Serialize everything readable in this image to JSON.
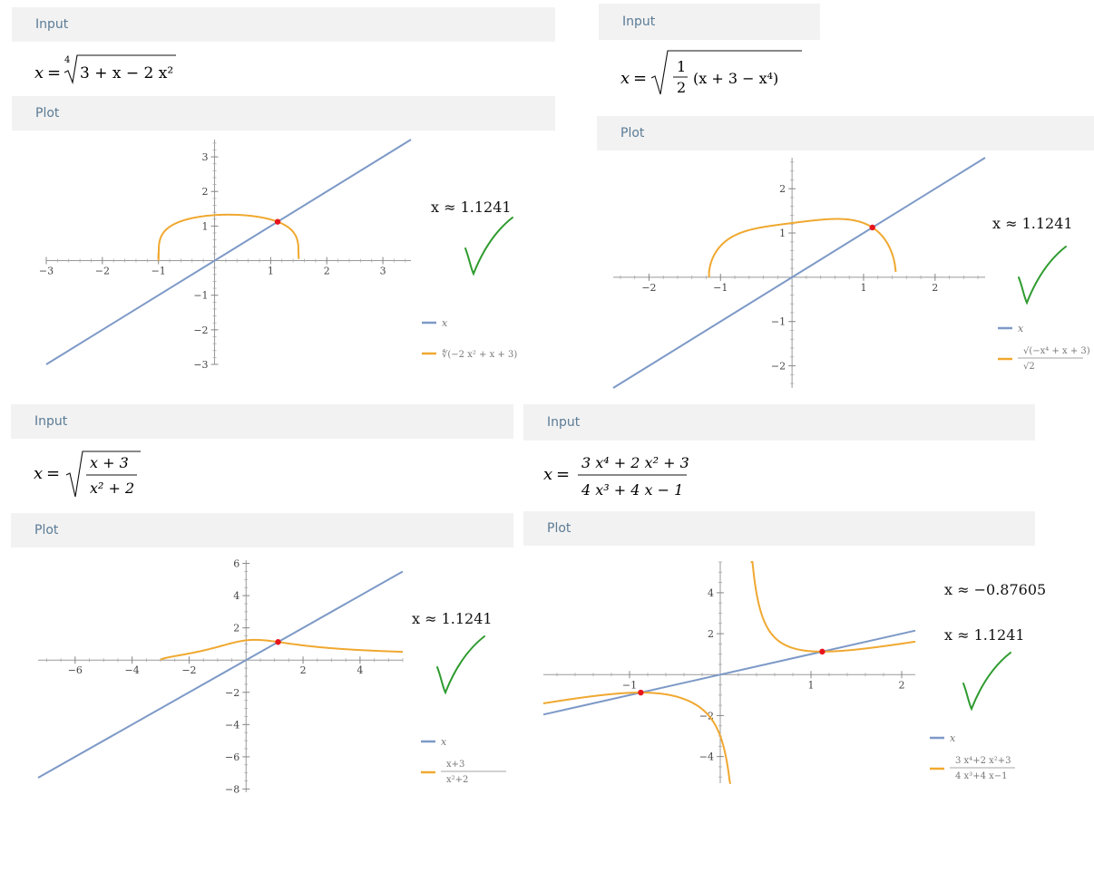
{
  "colors": {
    "line_x": "#7d99c7",
    "curve": "#f0a830",
    "point": "#e8141c",
    "check": "#2e9b2e",
    "header_bg": "#f2f2f2",
    "header_text": "#5b7b95"
  },
  "panels": [
    {
      "input_label": "Input",
      "plot_label": "Plot",
      "formula": {
        "lhs": "x",
        "eq": "=",
        "root_index": "4",
        "radicand": "3 + x − 2 x²"
      },
      "solutions": [
        "x ≈ 1.1241"
      ],
      "legend": {
        "line": "x",
        "curve": "∜(−2 x² + x + 3)"
      },
      "chart_data": {
        "type": "line",
        "xlim": [
          -3,
          3.5
        ],
        "ylim": [
          -3,
          3.5
        ],
        "x_ticks": [
          "−3",
          "−2",
          "−1",
          "1",
          "2",
          "3"
        ],
        "y_ticks": [
          "−3",
          "−2",
          "−1",
          "1",
          "2",
          "3"
        ],
        "series": [
          {
            "name": "x",
            "function": "y = x"
          },
          {
            "name": "∜(−2 x² + x + 3)",
            "function": "y = (3 + x − 2x²)^(1/4)",
            "domain": [
              -1,
              1.5
            ]
          }
        ],
        "intersections": [
          [
            1.1241,
            1.1241
          ]
        ]
      }
    },
    {
      "input_label": "Input",
      "plot_label": "Plot",
      "formula": {
        "lhs": "x",
        "eq": "=",
        "numer": "1",
        "denom": "2",
        "paren": "(x + 3 − x⁴)"
      },
      "solutions": [
        "x ≈ 1.1241"
      ],
      "legend": {
        "line": "x",
        "curve_numer": "√(−x⁴ + x + 3)",
        "curve_denom": "√2"
      },
      "chart_data": {
        "type": "line",
        "xlim": [
          -2.5,
          2.7
        ],
        "ylim": [
          -2.5,
          2.7
        ],
        "x_ticks": [
          "−2",
          "−1",
          "1",
          "2"
        ],
        "y_ticks": [
          "−2",
          "−1",
          "1",
          "2"
        ],
        "series": [
          {
            "name": "x",
            "function": "y = x"
          },
          {
            "name": "√(−x⁴+x+3)/√2",
            "function": "y = sqrt((x + 3 − x^4)/2)",
            "domain": [
              -1.16,
              1.45
            ]
          }
        ],
        "intersections": [
          [
            1.1241,
            1.1241
          ]
        ]
      }
    },
    {
      "input_label": "Input",
      "plot_label": "Plot",
      "formula": {
        "lhs": "x",
        "eq": "=",
        "numer": "x + 3",
        "denom": "x² + 2"
      },
      "solutions": [
        "x ≈ 1.1241"
      ],
      "legend": {
        "line": "x",
        "curve_numer": "x+3",
        "curve_denom": "x²+2"
      },
      "chart_data": {
        "type": "line",
        "xlim": [
          -7.3,
          5.5
        ],
        "ylim": [
          -8.2,
          6.2
        ],
        "x_ticks": [
          "−6",
          "−4",
          "−2",
          "2",
          "4"
        ],
        "y_ticks": [
          "−8",
          "−6",
          "−4",
          "−2",
          "2",
          "4",
          "6"
        ],
        "series": [
          {
            "name": "x",
            "function": "y = x"
          },
          {
            "name": "√((x+3)/(x²+2))",
            "function": "y = sqrt((x+3)/(x²+2))",
            "domain": [
              -3,
              5.5
            ]
          }
        ],
        "intersections": [
          [
            1.1241,
            1.1241
          ]
        ]
      }
    },
    {
      "input_label": "Input",
      "plot_label": "Plot",
      "formula": {
        "lhs": "x",
        "eq": "=",
        "numer": "3 x⁴ + 2 x² + 3",
        "denom": "4 x³ + 4 x − 1"
      },
      "solutions": [
        "x ≈ −0.87605",
        "x ≈ 1.1241"
      ],
      "legend": {
        "line": "x",
        "curve_numer": "3 x⁴+2 x²+3",
        "curve_denom": "4 x³+4 x−1"
      },
      "chart_data": {
        "type": "line",
        "xlim": [
          -1.95,
          2.15
        ],
        "ylim": [
          -5.3,
          5.5
        ],
        "x_ticks": [
          "−1",
          "1",
          "2"
        ],
        "y_ticks": [
          "−4",
          "−2",
          "2",
          "4"
        ],
        "series": [
          {
            "name": "x",
            "function": "y = x"
          },
          {
            "name": "(3x⁴+2x²+3)/(4x³+4x−1)",
            "function": "y = (3x^4+2x^2+3)/(4x^3+4x-1)",
            "asymptote": 0.2367
          }
        ],
        "intersections": [
          [
            -0.87605,
            -0.87605
          ],
          [
            1.1241,
            1.1241
          ]
        ]
      }
    }
  ]
}
